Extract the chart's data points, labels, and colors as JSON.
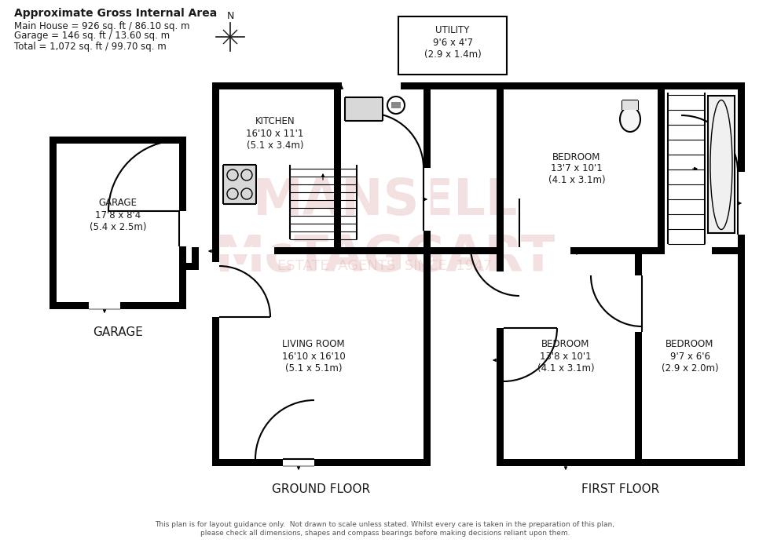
{
  "bg": "#ffffff",
  "wc": "#000000",
  "disclaimer": "This plan is for layout guidance only.  Not drawn to scale unless stated. Whilst every care is taken in the preparation of this plan,\nplease check all dimensions, shapes and compass bearings before making decisions reliant upon them.",
  "title_bold": "Approximate Gross Internal Area",
  "title_lines": [
    "Main House = 926 sq. ft / 86.10 sq. m",
    "Garage = 146 sq. ft / 13.60 sq. m",
    "Total = 1,072 sq. ft / 99.70 sq. m"
  ],
  "watermark1": "MANSELL\nMcTAGGART",
  "watermark2": "ESTATE  AGENTS  SINCE  1947",
  "wm_color": "#e0b0b0",
  "GL": 63,
  "GR": 237,
  "GB": 298,
  "GT": 518,
  "GFL": 270,
  "GFR": 548,
  "GFB": 98,
  "GFT": 587,
  "IWY": 368,
  "UDIV": 425,
  "FFL": 632,
  "FFR": 948,
  "FFB": 98,
  "FFT": 587,
  "IFY": 368,
  "BD1X": 837,
  "BD23X": 808,
  "BD3X": 808
}
